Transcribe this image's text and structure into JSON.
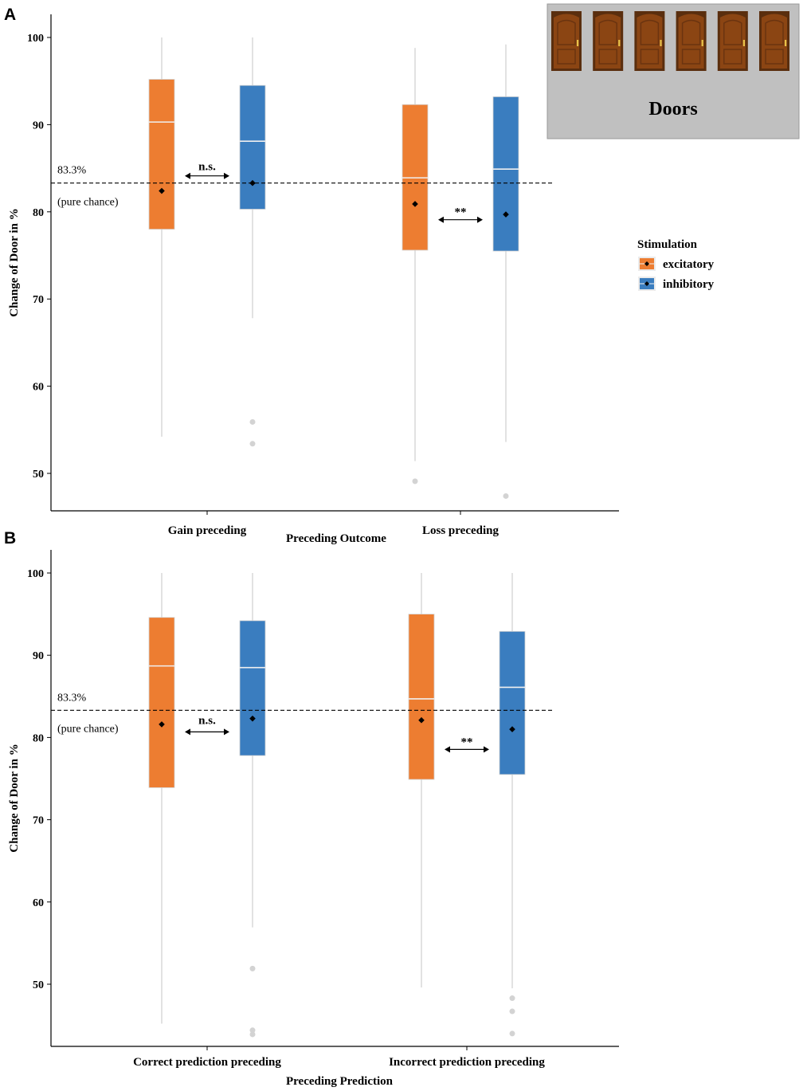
{
  "colors": {
    "excitatory": "#ED7D31",
    "inhibitory": "#3A7DBF",
    "whisker": "#D3D3D3",
    "outlier": "#D3D3D3",
    "median": "#F0F0F0",
    "mean": "#000000",
    "inset_bg": "#C0C0C0",
    "door": "#8B4513"
  },
  "legend": {
    "title": "Stimulation",
    "items": [
      {
        "label": "excitatory",
        "color_key": "excitatory"
      },
      {
        "label": "inhibitory",
        "color_key": "inhibitory"
      }
    ]
  },
  "inset": {
    "label": "Doors",
    "door_count": 6
  },
  "chart_data": [
    {
      "panel_label": "A",
      "type": "boxplot",
      "ylabel": "Change of Door in %",
      "xlabel": "Preceding Outcome",
      "ylim": [
        43.5,
        101.5
      ],
      "yticks": [
        50,
        60,
        70,
        80,
        90,
        100
      ],
      "grid": false,
      "reference": {
        "value": 83.3,
        "label_top": "83.3%",
        "label_bottom": "(pure chance)"
      },
      "groups": [
        {
          "label": "Gain preceding",
          "significance": "n.s.",
          "boxes": [
            {
              "series": "excitatory",
              "whisker_low": 54.2,
              "q1": 78.0,
              "median": 90.3,
              "q3": 95.2,
              "whisker_high": 100,
              "mean": 82.4,
              "outliers": []
            },
            {
              "series": "inhibitory",
              "whisker_low": 67.8,
              "q1": 80.3,
              "median": 88.1,
              "q3": 94.5,
              "whisker_high": 100,
              "mean": 83.3,
              "outliers": [
                55.9,
                53.4
              ]
            }
          ]
        },
        {
          "label": "Loss preceding",
          "significance": "**",
          "boxes": [
            {
              "series": "excitatory",
              "whisker_low": 51.4,
              "q1": 75.6,
              "median": 83.9,
              "q3": 92.3,
              "whisker_high": 98.8,
              "mean": 80.9,
              "outliers": [
                49.1
              ]
            },
            {
              "series": "inhibitory",
              "whisker_low": 53.6,
              "q1": 75.5,
              "median": 84.9,
              "q3": 93.2,
              "whisker_high": 99.2,
              "mean": 79.7,
              "outliers": [
                47.4
              ]
            }
          ]
        }
      ]
    },
    {
      "panel_label": "B",
      "type": "boxplot",
      "ylabel": "Change of Door in %",
      "xlabel": "Preceding Prediction",
      "ylim": [
        42.5,
        101.5
      ],
      "yticks": [
        50,
        60,
        70,
        80,
        90,
        100
      ],
      "grid": false,
      "reference": {
        "value": 83.3,
        "label_top": "83.3%",
        "label_bottom": "(pure chance)"
      },
      "groups": [
        {
          "label": "Correct prediction preceding",
          "significance": "n.s.",
          "boxes": [
            {
              "series": "excitatory",
              "whisker_low": 45.2,
              "q1": 73.9,
              "median": 88.7,
              "q3": 94.6,
              "whisker_high": 100,
              "mean": 81.6,
              "outliers": []
            },
            {
              "series": "inhibitory",
              "whisker_low": 56.9,
              "q1": 77.8,
              "median": 88.5,
              "q3": 94.2,
              "whisker_high": 100,
              "mean": 82.3,
              "outliers": [
                51.9,
                44.4,
                43.9
              ]
            }
          ]
        },
        {
          "label": "Incorrect prediction preceding",
          "significance": "**",
          "boxes": [
            {
              "series": "excitatory",
              "whisker_low": 49.6,
              "q1": 74.9,
              "median": 84.7,
              "q3": 95.0,
              "whisker_high": 100,
              "mean": 82.1,
              "outliers": []
            },
            {
              "series": "inhibitory",
              "whisker_low": 49.5,
              "q1": 75.5,
              "median": 86.1,
              "q3": 92.9,
              "whisker_high": 100,
              "mean": 81.0,
              "outliers": [
                48.3,
                46.7,
                44.0
              ]
            }
          ]
        }
      ]
    }
  ]
}
